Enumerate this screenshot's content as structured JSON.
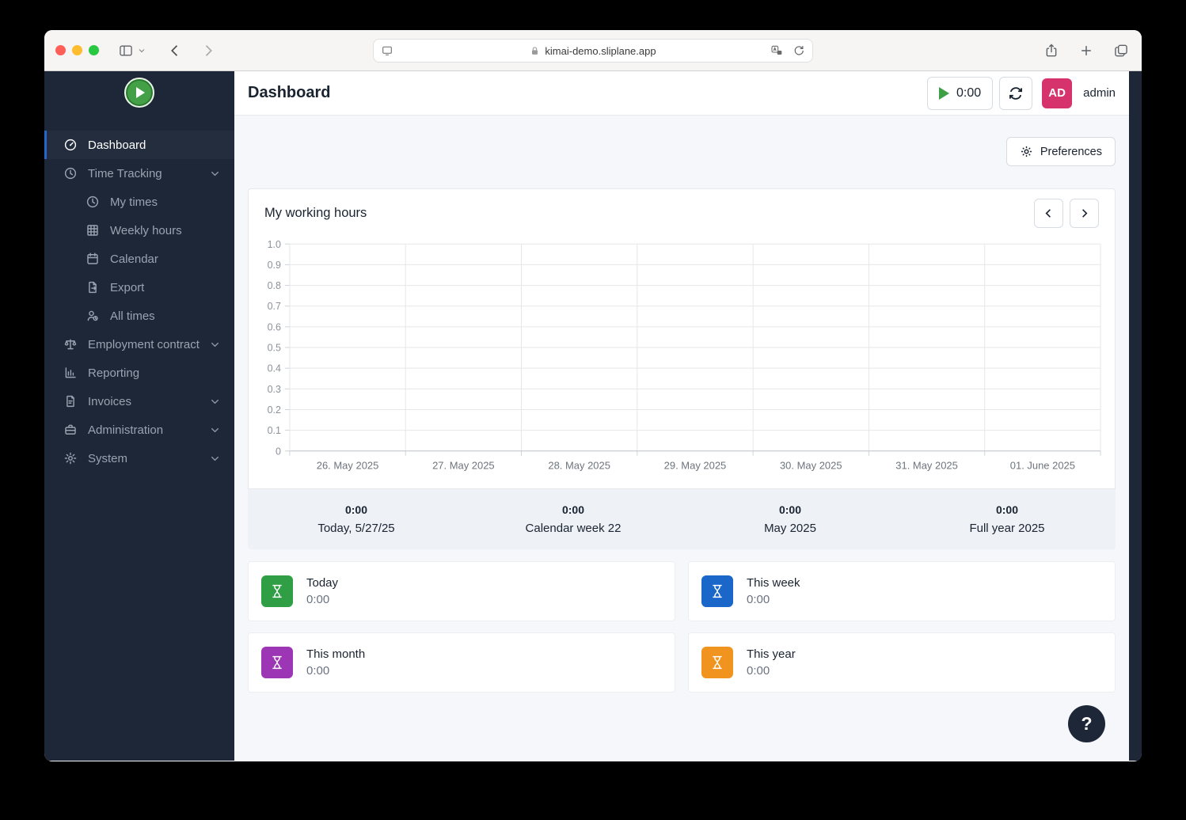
{
  "browser": {
    "url": "kimai-demo.sliplane.app",
    "traffic_lights": {
      "close": "#ff5f57",
      "minimize": "#febc2e",
      "zoom": "#28c840"
    }
  },
  "sidebar": {
    "items": [
      {
        "label": "Dashboard",
        "icon": "gauge-icon",
        "active": true,
        "sub": false,
        "chevron": false
      },
      {
        "label": "Time Tracking",
        "icon": "clock-icon",
        "active": false,
        "sub": false,
        "chevron": true
      },
      {
        "label": "My times",
        "icon": "clock-icon",
        "active": false,
        "sub": true,
        "chevron": false
      },
      {
        "label": "Weekly hours",
        "icon": "grid-icon",
        "active": false,
        "sub": true,
        "chevron": false
      },
      {
        "label": "Calendar",
        "icon": "calendar-icon",
        "active": false,
        "sub": true,
        "chevron": false
      },
      {
        "label": "Export",
        "icon": "file-export-icon",
        "active": false,
        "sub": true,
        "chevron": false
      },
      {
        "label": "All times",
        "icon": "users-clock-icon",
        "active": false,
        "sub": true,
        "chevron": false
      },
      {
        "label": "Employment contract",
        "icon": "scale-icon",
        "active": false,
        "sub": false,
        "chevron": true
      },
      {
        "label": "Reporting",
        "icon": "chart-bar-icon",
        "active": false,
        "sub": false,
        "chevron": false
      },
      {
        "label": "Invoices",
        "icon": "invoice-icon",
        "active": false,
        "sub": false,
        "chevron": true
      },
      {
        "label": "Administration",
        "icon": "briefcase-icon",
        "active": false,
        "sub": false,
        "chevron": true
      },
      {
        "label": "System",
        "icon": "gear-icon",
        "active": false,
        "sub": false,
        "chevron": true
      }
    ]
  },
  "header": {
    "title": "Dashboard",
    "timer": "0:00",
    "avatar": "AD",
    "avatar_color": "#d6336c",
    "username": "admin"
  },
  "toolbar": {
    "preferences_label": "Preferences"
  },
  "working_hours": {
    "title": "My working hours"
  },
  "chart_data": {
    "type": "bar",
    "title": "My working hours",
    "categories": [
      "26. May 2025",
      "27. May 2025",
      "28. May 2025",
      "29. May 2025",
      "30. May 2025",
      "31. May 2025",
      "01. June 2025"
    ],
    "values": [
      0,
      0,
      0,
      0,
      0,
      0,
      0
    ],
    "xlabel": "",
    "ylabel": "",
    "ylim": [
      0,
      1.0
    ],
    "ytick_labels": [
      "0",
      "0.1",
      "0.2",
      "0.3",
      "0.4",
      "0.5",
      "0.6",
      "0.7",
      "0.8",
      "0.9",
      "1.0"
    ],
    "grid": true,
    "legend": false
  },
  "summary": [
    {
      "value": "0:00",
      "label": "Today, 5/27/25"
    },
    {
      "value": "0:00",
      "label": "Calendar week 22"
    },
    {
      "value": "0:00",
      "label": "May 2025"
    },
    {
      "value": "0:00",
      "label": "Full year 2025"
    }
  ],
  "cards": [
    {
      "title": "Today",
      "value": "0:00",
      "icon": "hourglass-icon",
      "color": "#2f9e44"
    },
    {
      "title": "This week",
      "value": "0:00",
      "icon": "hourglass-icon",
      "color": "#1a66c9"
    },
    {
      "title": "This month",
      "value": "0:00",
      "icon": "hourglass-icon",
      "color": "#9c36b5"
    },
    {
      "title": "This year",
      "value": "0:00",
      "icon": "hourglass-icon",
      "color": "#f0941f"
    }
  ],
  "help": {
    "label": "?"
  }
}
